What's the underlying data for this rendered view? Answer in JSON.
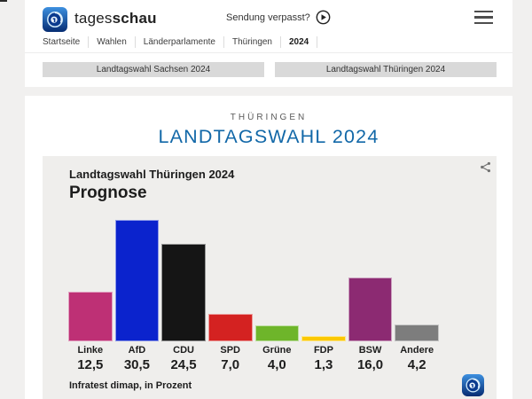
{
  "header": {
    "brand_regular": "tages",
    "brand_bold": "schau",
    "sendung_label": "Sendung verpasst?"
  },
  "breadcrumb": [
    "Startseite",
    "Wahlen",
    "Länderparlamente",
    "Thüringen",
    "2024"
  ],
  "quick_links": [
    {
      "label": "Landtagswahl Sachsen 2024"
    },
    {
      "label": "Landtagswahl Thüringen 2024"
    }
  ],
  "main": {
    "kicker": "THÜRINGEN",
    "title": "LANDTAGSWAHL 2024"
  },
  "chart": {
    "subtitle": "Landtagswahl Thüringen 2024",
    "heading": "Prognose",
    "source": "Infratest dimap, in Prozent"
  },
  "chart_data": {
    "type": "bar",
    "title": "Landtagswahl Thüringen 2024 – Prognose",
    "categories": [
      "Linke",
      "AfD",
      "CDU",
      "SPD",
      "Grüne",
      "FDP",
      "BSW",
      "Andere"
    ],
    "values": [
      12.5,
      30.5,
      24.5,
      7.0,
      4.0,
      1.3,
      16.0,
      4.2
    ],
    "value_labels": [
      "12,5",
      "30,5",
      "24,5",
      "7,0",
      "4,0",
      "1,3",
      "16,0",
      "4,2"
    ],
    "colors": [
      "#be3075",
      "#0b23cd",
      "#151515",
      "#d42221",
      "#6eb52a",
      "#fbc802",
      "#8c2a72",
      "#7d7d7d"
    ],
    "ylabel": "Prozent",
    "ylim": [
      0,
      31
    ],
    "grid": false,
    "legend": "none",
    "source": "Infratest dimap"
  },
  "colors": {
    "accent_blue": "#1268a8",
    "panel_gray": "#efeeec",
    "button_gray": "#d9d9d9"
  }
}
